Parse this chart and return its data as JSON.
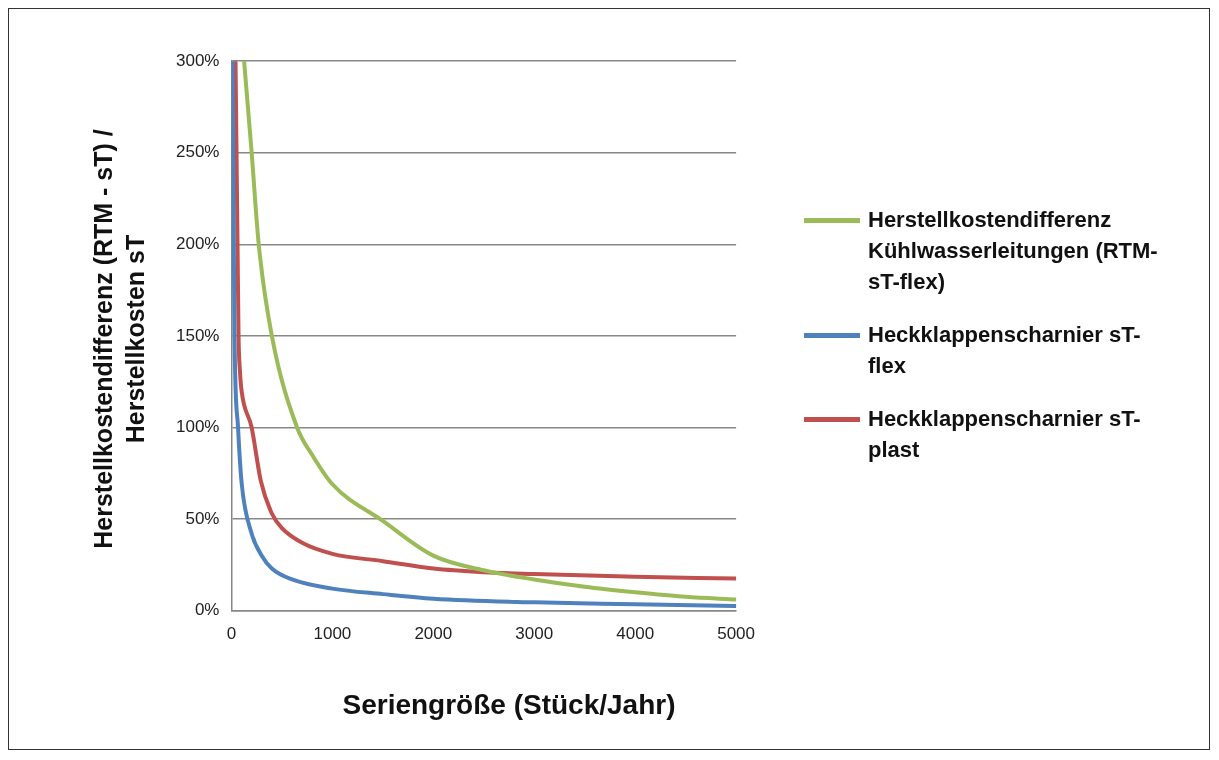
{
  "chart_data": {
    "type": "line",
    "xlabel": "Seriengröße (Stück/Jahr)",
    "ylabel": "Herstellkostendifferenz (RTM - sT) / Herstellkosten sT",
    "xlim": [
      0,
      5000
    ],
    "xticks": [
      0,
      1000,
      2000,
      3000,
      4000,
      5000
    ],
    "ylim": [
      0,
      300
    ],
    "yticks": [
      {
        "value": 0,
        "label": "0%"
      },
      {
        "value": 50,
        "label": "50%"
      },
      {
        "value": 100,
        "label": "100%"
      },
      {
        "value": 150,
        "label": "150%"
      },
      {
        "value": 200,
        "label": "200%"
      },
      {
        "value": 250,
        "label": "250%"
      },
      {
        "value": 300,
        "label": "300%"
      }
    ],
    "grid": "y",
    "legend": "right",
    "marker": "none",
    "line_style": "solid",
    "series": [
      {
        "name": "Herstellkostendifferenz Kühlwasserleitungen (RTM-sT-flex)",
        "color": "#9bbb59",
        "x": [
          125,
          200,
          270,
          400,
          650,
          800,
          1000,
          1500,
          2000,
          2500,
          3000,
          3500,
          4000,
          4500,
          5000
        ],
        "values": [
          300,
          250,
          200,
          150,
          100,
          85,
          69,
          49,
          30,
          22,
          17,
          13,
          10,
          7.5,
          6
        ]
      },
      {
        "name": "Heckklappenscharnier sT-flex",
        "color": "#4f81bd",
        "x": [
          10,
          30,
          65,
          100,
          200,
          300,
          400,
          600,
          1000,
          1500,
          2000,
          3000,
          4000,
          5000
        ],
        "values": [
          300,
          150,
          100,
          70,
          42,
          30,
          23,
          17,
          12,
          9,
          6.5,
          4.5,
          3.5,
          2.5
        ]
      },
      {
        "name": "Heckklappenscharnier sT-plast",
        "color": "#c0504d",
        "x": [
          40,
          60,
          70,
          85,
          100,
          200,
          290,
          400,
          500,
          700,
          1000,
          1500,
          2000,
          2500,
          3000,
          4000,
          5000
        ],
        "values": [
          300,
          200,
          150,
          130,
          120,
          100,
          71,
          53,
          45,
          37,
          31,
          27,
          23,
          21,
          20,
          18.5,
          17.5
        ]
      }
    ]
  }
}
